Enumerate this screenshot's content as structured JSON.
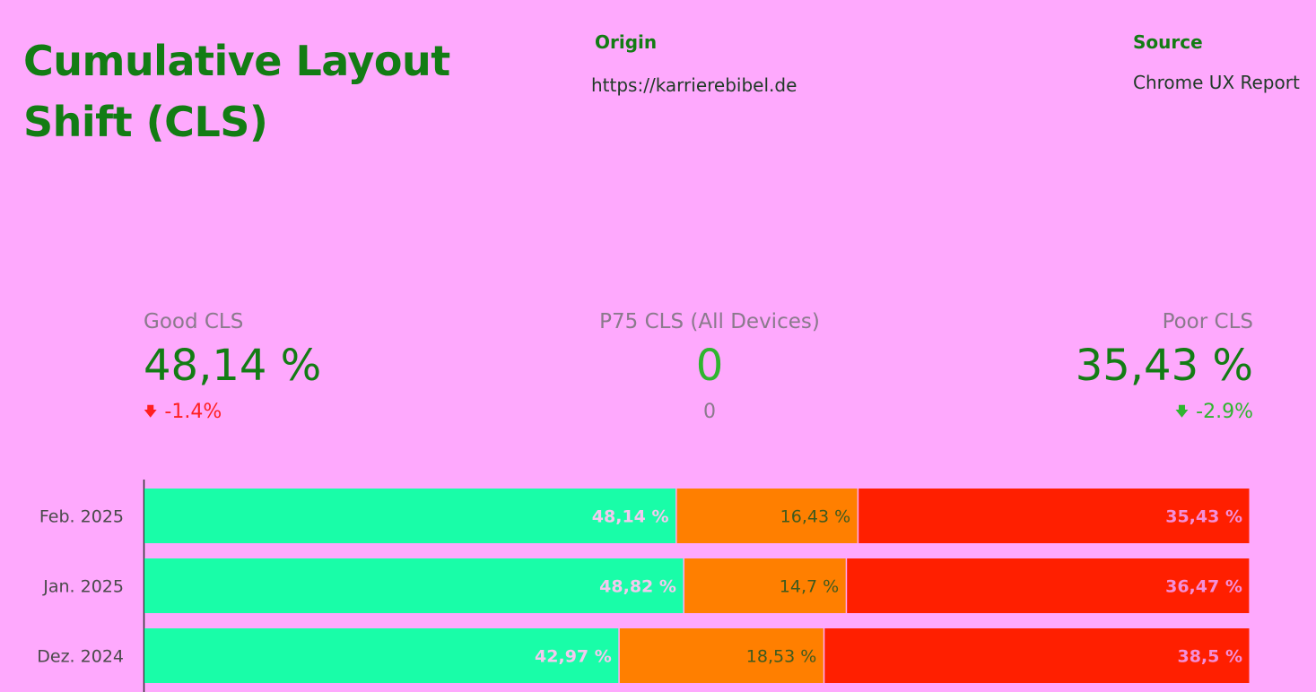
{
  "header": {
    "title": "Cumulative Layout Shift (CLS)",
    "origin_label": "Origin",
    "origin_value": "https://karrierebibel.de",
    "source_label": "Source",
    "source_value": "Chrome UX Report"
  },
  "kpis": {
    "good": {
      "label": "Good CLS",
      "value": "48,14 %",
      "delta": "-1.4%",
      "delta_color": "#ff1f1f"
    },
    "p75": {
      "label": "P75 CLS (All Devices)",
      "value": "0",
      "sub": "0",
      "value_color": "#2fb52f"
    },
    "poor": {
      "label": "Poor CLS",
      "value": "35,43 %",
      "delta": "-2.9%",
      "delta_color": "#2fb52f"
    }
  },
  "colors": {
    "background": "#fea9fd",
    "good": "#19fda8",
    "needs_improvement": "#ff7f00",
    "poor": "#ff1f00",
    "title": "#137c14"
  },
  "chart_data": {
    "type": "bar",
    "orientation": "horizontal",
    "stacked": true,
    "normalized": true,
    "categories": [
      "Feb. 2025",
      "Jan. 2025",
      "Dez. 2024"
    ],
    "series": [
      {
        "values": [
          48.14,
          48.82,
          42.97
        ],
        "labels": [
          "48,14 %",
          "48,82 %",
          "42,97 %"
        ],
        "color": "#19fda8",
        "label_color": "#f3c9ee"
      },
      {
        "values": [
          16.43,
          14.7,
          18.53
        ],
        "labels": [
          "16,43 %",
          "14,7 %",
          "18,53 %"
        ],
        "color": "#ff7f00",
        "label_color": "#3e5a1e"
      },
      {
        "values": [
          35.43,
          36.47,
          38.5
        ],
        "labels": [
          "35,43 %",
          "36,47 %",
          "38,5 %"
        ],
        "color": "#ff1f00",
        "label_color": "#f38fd8"
      }
    ],
    "xlim": [
      0,
      100
    ],
    "grid": false,
    "legend": "none"
  }
}
